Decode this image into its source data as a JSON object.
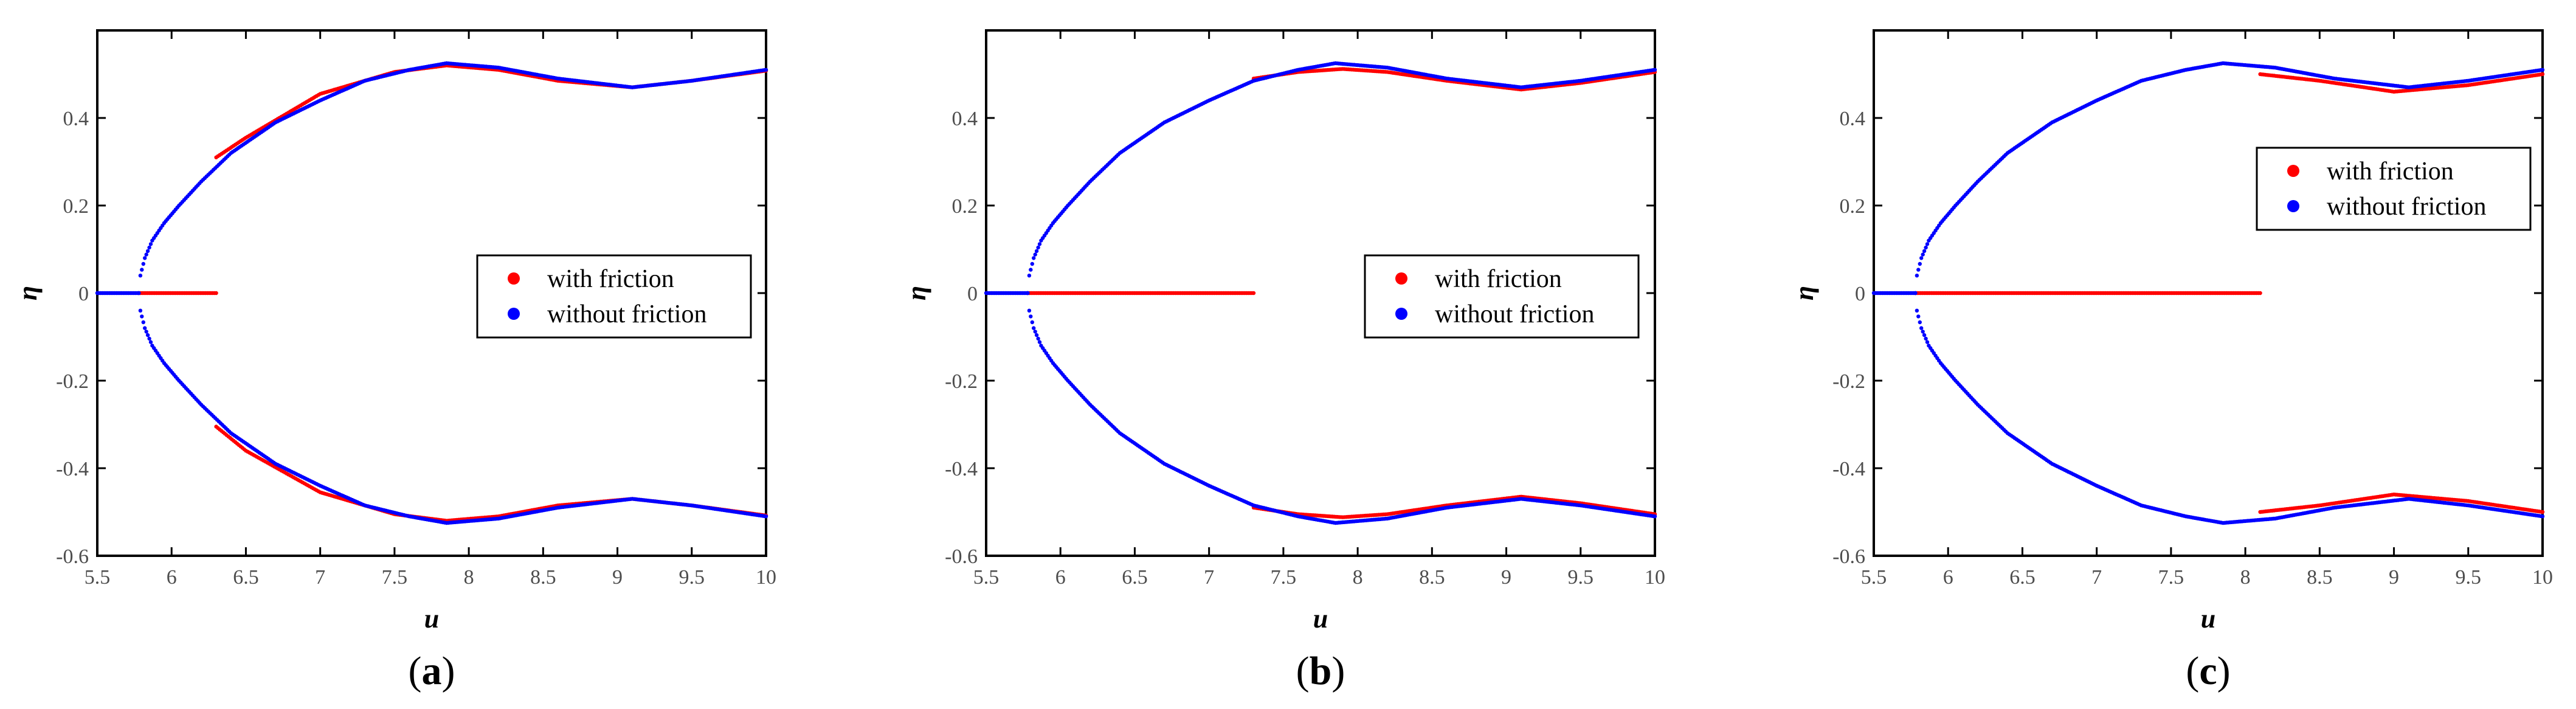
{
  "chart_data": [
    {
      "panel_label": "a",
      "type": "scatter",
      "xlabel": "u",
      "ylabel": "η",
      "xlim": [
        5.5,
        10
      ],
      "ylim": [
        -0.6,
        0.6
      ],
      "xticks": [
        "5.5",
        "6",
        "6.5",
        "7",
        "7.5",
        "8",
        "8.5",
        "9",
        "9.5",
        "10"
      ],
      "yticks": [
        "-0.6",
        "-0.4",
        "-0.2",
        "0",
        "0.2",
        "0.4"
      ],
      "legend_position": "right",
      "series": [
        {
          "name": "with friction",
          "color": "#ff0000",
          "segments": [
            {
              "x": [
                5.78,
                6.3
              ],
              "y": [
                0,
                0
              ]
            },
            {
              "x": [
                6.3,
                6.5,
                7.0,
                7.5,
                7.85,
                8.2,
                8.6,
                9.1,
                9.5,
                10.0
              ],
              "y": [
                0.31,
                0.355,
                0.455,
                0.505,
                0.52,
                0.51,
                0.485,
                0.47,
                0.485,
                0.508
              ]
            },
            {
              "x": [
                6.3,
                6.5,
                7.0,
                7.5,
                7.85,
                8.2,
                8.6,
                9.1,
                9.5,
                10.0
              ],
              "y": [
                -0.305,
                -0.36,
                -0.455,
                -0.505,
                -0.52,
                -0.51,
                -0.485,
                -0.47,
                -0.485,
                -0.508
              ]
            }
          ]
        },
        {
          "name": "without friction",
          "color": "#0000ff",
          "segments": [
            {
              "x": [
                5.5,
                5.78
              ],
              "y": [
                0,
                0
              ]
            },
            {
              "x": [
                5.78,
                5.79,
                5.82,
                5.87,
                5.95,
                6.05,
                6.2,
                6.4,
                6.7,
                7.0,
                7.3,
                7.6,
                7.85,
                8.2,
                8.6,
                9.1,
                9.5,
                10.0
              ],
              "y": [
                0.0,
                0.04,
                0.08,
                0.12,
                0.16,
                0.2,
                0.255,
                0.32,
                0.39,
                0.44,
                0.485,
                0.51,
                0.525,
                0.515,
                0.49,
                0.47,
                0.485,
                0.51
              ]
            },
            {
              "x": [
                5.78,
                5.79,
                5.82,
                5.87,
                5.95,
                6.05,
                6.2,
                6.4,
                6.7,
                7.0,
                7.3,
                7.6,
                7.85,
                8.2,
                8.6,
                9.1,
                9.5,
                10.0
              ],
              "y": [
                0.0,
                -0.04,
                -0.08,
                -0.12,
                -0.16,
                -0.2,
                -0.255,
                -0.32,
                -0.39,
                -0.44,
                -0.485,
                -0.51,
                -0.525,
                -0.515,
                -0.49,
                -0.47,
                -0.485,
                -0.51
              ]
            }
          ]
        }
      ]
    },
    {
      "panel_label": "b",
      "type": "scatter",
      "xlabel": "u",
      "ylabel": "η",
      "xlim": [
        5.5,
        10
      ],
      "ylim": [
        -0.6,
        0.6
      ],
      "xticks": [
        "5.5",
        "6",
        "6.5",
        "7",
        "7.5",
        "8",
        "8.5",
        "9",
        "9.5",
        "10"
      ],
      "yticks": [
        "-0.6",
        "-0.4",
        "-0.2",
        "0",
        "0.2",
        "0.4"
      ],
      "legend_position": "right",
      "series": [
        {
          "name": "with friction",
          "color": "#ff0000",
          "segments": [
            {
              "x": [
                5.78,
                7.3
              ],
              "y": [
                0,
                0
              ]
            },
            {
              "x": [
                7.3,
                7.6,
                7.9,
                8.2,
                8.6,
                9.1,
                9.5,
                10.0
              ],
              "y": [
                0.49,
                0.505,
                0.512,
                0.505,
                0.485,
                0.465,
                0.48,
                0.505
              ]
            },
            {
              "x": [
                7.3,
                7.6,
                7.9,
                8.2,
                8.6,
                9.1,
                9.5,
                10.0
              ],
              "y": [
                -0.49,
                -0.505,
                -0.512,
                -0.505,
                -0.485,
                -0.465,
                -0.48,
                -0.505
              ]
            }
          ]
        },
        {
          "name": "without friction",
          "color": "#0000ff",
          "segments": [
            {
              "x": [
                5.5,
                5.78
              ],
              "y": [
                0,
                0
              ]
            },
            {
              "x": [
                5.78,
                5.79,
                5.82,
                5.87,
                5.95,
                6.05,
                6.2,
                6.4,
                6.7,
                7.0,
                7.3,
                7.6,
                7.85,
                8.2,
                8.6,
                9.1,
                9.5,
                10.0
              ],
              "y": [
                0.0,
                0.04,
                0.08,
                0.12,
                0.16,
                0.2,
                0.255,
                0.32,
                0.39,
                0.44,
                0.485,
                0.51,
                0.525,
                0.515,
                0.49,
                0.47,
                0.485,
                0.51
              ]
            },
            {
              "x": [
                5.78,
                5.79,
                5.82,
                5.87,
                5.95,
                6.05,
                6.2,
                6.4,
                6.7,
                7.0,
                7.3,
                7.6,
                7.85,
                8.2,
                8.6,
                9.1,
                9.5,
                10.0
              ],
              "y": [
                0.0,
                -0.04,
                -0.08,
                -0.12,
                -0.16,
                -0.2,
                -0.255,
                -0.32,
                -0.39,
                -0.44,
                -0.485,
                -0.51,
                -0.525,
                -0.515,
                -0.49,
                -0.47,
                -0.485,
                -0.51
              ]
            }
          ]
        }
      ]
    },
    {
      "panel_label": "c",
      "type": "scatter",
      "xlabel": "u",
      "ylabel": "η",
      "xlim": [
        5.5,
        10
      ],
      "ylim": [
        -0.6,
        0.6
      ],
      "xticks": [
        "5.5",
        "6",
        "6.5",
        "7",
        "7.5",
        "8",
        "8.5",
        "9",
        "9.5",
        "10"
      ],
      "yticks": [
        "-0.6",
        "-0.4",
        "-0.2",
        "0",
        "0.2",
        "0.4"
      ],
      "legend_position": "top-right",
      "series": [
        {
          "name": "with friction",
          "color": "#ff0000",
          "segments": [
            {
              "x": [
                5.78,
                8.1
              ],
              "y": [
                0,
                0
              ]
            },
            {
              "x": [
                8.1,
                8.5,
                9.0,
                9.5,
                10.0
              ],
              "y": [
                0.5,
                0.485,
                0.46,
                0.475,
                0.5
              ]
            },
            {
              "x": [
                8.1,
                8.5,
                9.0,
                9.5,
                10.0
              ],
              "y": [
                -0.5,
                -0.485,
                -0.46,
                -0.475,
                -0.5
              ]
            }
          ]
        },
        {
          "name": "without friction",
          "color": "#0000ff",
          "segments": [
            {
              "x": [
                5.5,
                5.78
              ],
              "y": [
                0,
                0
              ]
            },
            {
              "x": [
                5.78,
                5.79,
                5.82,
                5.87,
                5.95,
                6.05,
                6.2,
                6.4,
                6.7,
                7.0,
                7.3,
                7.6,
                7.85,
                8.2,
                8.6,
                9.1,
                9.5,
                10.0
              ],
              "y": [
                0.0,
                0.04,
                0.08,
                0.12,
                0.16,
                0.2,
                0.255,
                0.32,
                0.39,
                0.44,
                0.485,
                0.51,
                0.525,
                0.515,
                0.49,
                0.47,
                0.485,
                0.51
              ]
            },
            {
              "x": [
                5.78,
                5.79,
                5.82,
                5.87,
                5.95,
                6.05,
                6.2,
                6.4,
                6.7,
                7.0,
                7.3,
                7.6,
                7.85,
                8.2,
                8.6,
                9.1,
                9.5,
                10.0
              ],
              "y": [
                0.0,
                -0.04,
                -0.08,
                -0.12,
                -0.16,
                -0.2,
                -0.255,
                -0.32,
                -0.39,
                -0.44,
                -0.485,
                -0.51,
                -0.525,
                -0.515,
                -0.49,
                -0.47,
                -0.485,
                -0.51
              ]
            }
          ]
        }
      ]
    }
  ]
}
